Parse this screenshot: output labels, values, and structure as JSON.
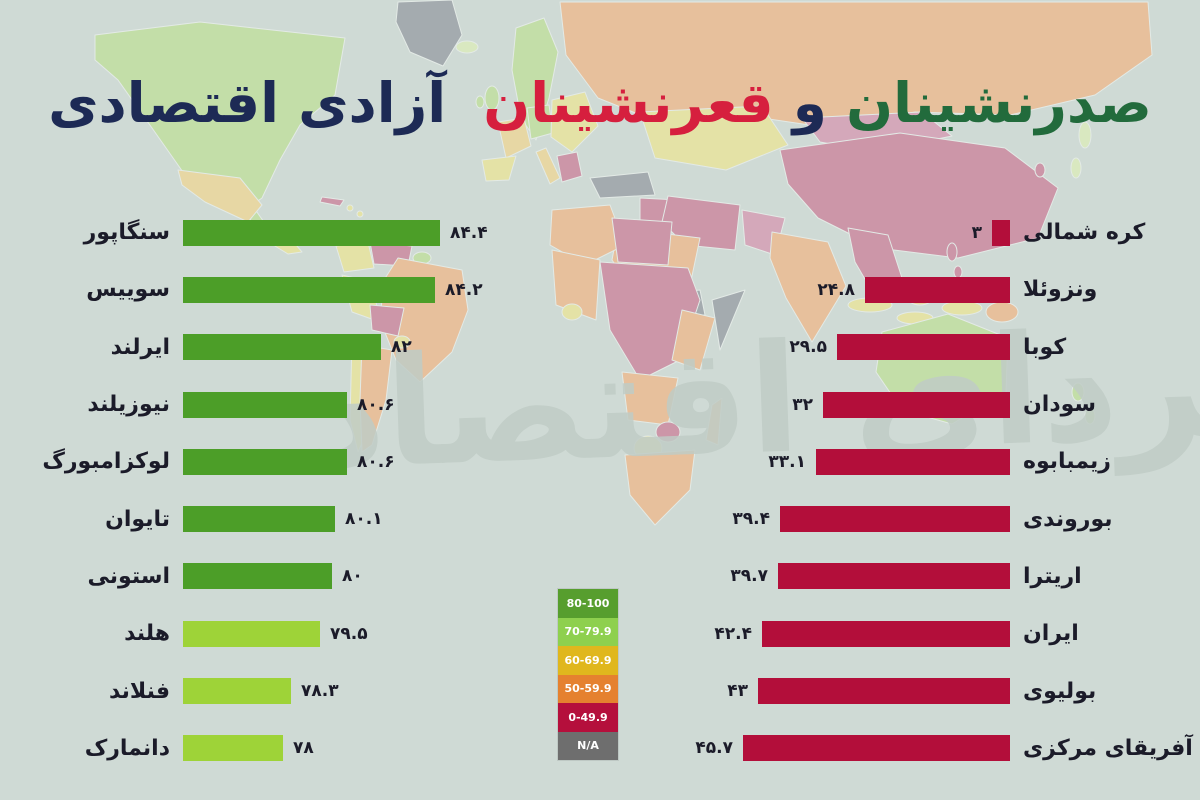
{
  "title": {
    "top_word": "صدرنشینان",
    "and_word": "و",
    "bottom_word": "قعرنشینان",
    "subject": "آزادی اقتصادی",
    "top_color": "#226b3c",
    "and_color": "#1d2a55",
    "bottom_color": "#d61f3e",
    "subject_color": "#1d2a55"
  },
  "watermark": "فردای اقتصاد",
  "colors": {
    "ocean_background": "#cfdad5",
    "label_text": "#1b1b29",
    "top_bar_dark_green": "#4c9e28",
    "top_bar_light_green": "#9ed338",
    "bottom_bar_red": "#b30e3a"
  },
  "chart_data": [
    {
      "type": "bar",
      "name": "top-countries-economic-freedom",
      "orientation": "horizontal",
      "categories": [
        "سنگاپور",
        "سوییس",
        "ایرلند",
        "نیوزیلند",
        "لوکزامبورگ",
        "تایوان",
        "استونی",
        "هلند",
        "فنلاند",
        "دانمارک"
      ],
      "values": [
        84.4,
        84.2,
        82,
        80.6,
        80.6,
        80.1,
        80,
        79.5,
        78.3,
        78
      ],
      "value_labels": [
        "۸۴.۴",
        "۸۴.۲",
        "۸۲",
        "۸۰.۶",
        "۸۰.۶",
        "۸۰.۱",
        "۸۰",
        "۷۹.۵",
        "۷۸.۳",
        "۷۸"
      ],
      "bar_colors": [
        "#4c9e28",
        "#4c9e28",
        "#4c9e28",
        "#4c9e28",
        "#4c9e28",
        "#4c9e28",
        "#4c9e28",
        "#9ed338",
        "#9ed338",
        "#9ed338"
      ]
    },
    {
      "type": "bar",
      "name": "bottom-countries-economic-freedom",
      "orientation": "horizontal-mirrored",
      "categories": [
        "کره شمالی",
        "ونزوئلا",
        "کوبا",
        "سودان",
        "زیمبابوه",
        "بوروندی",
        "اریترا",
        "ایران",
        "بولیوی",
        "آفریقای مرکزی"
      ],
      "values": [
        3,
        24.8,
        29.5,
        32,
        33.1,
        39.4,
        39.7,
        42.4,
        43,
        45.7
      ],
      "value_labels": [
        "۳",
        "۲۴.۸",
        "۲۹.۵",
        "۳۲",
        "۳۳.۱",
        "۳۹.۴",
        "۳۹.۷",
        "۴۲.۴",
        "۴۳",
        "۴۵.۷"
      ],
      "bar_colors": [
        "#b30e3a",
        "#b30e3a",
        "#b30e3a",
        "#b30e3a",
        "#b30e3a",
        "#b30e3a",
        "#b30e3a",
        "#b30e3a",
        "#b30e3a",
        "#b30e3a"
      ]
    }
  ],
  "legend": {
    "items": [
      {
        "label": "80-100",
        "color": "#579e2e"
      },
      {
        "label": "70-79.9",
        "color": "#8ed04e"
      },
      {
        "label": "60-69.9",
        "color": "#e0b71d"
      },
      {
        "label": "50-59.9",
        "color": "#e5812f"
      },
      {
        "label": "0-49.9",
        "color": "#b50f3c"
      },
      {
        "label": "N/A",
        "color": "#6e6e6e"
      }
    ]
  }
}
